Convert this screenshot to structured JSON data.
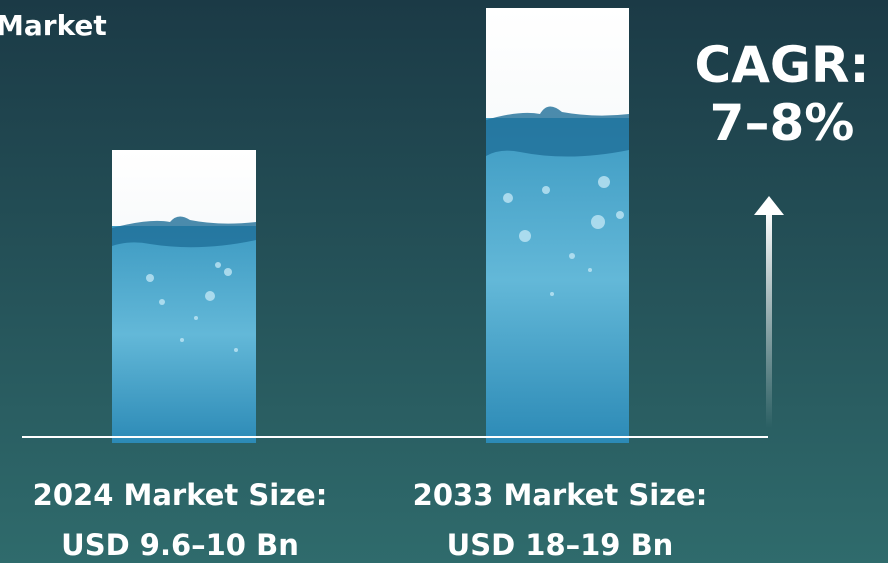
{
  "header": {
    "title": "Market"
  },
  "bars": [
    {
      "label": "2024 Market Size:",
      "value": "USD 9.6–10 Bn"
    },
    {
      "label": "2033 Market Size:",
      "value": "USD 18–19 Bn"
    }
  ],
  "cagr": {
    "label": "CAGR:",
    "value": "7–8%"
  }
}
